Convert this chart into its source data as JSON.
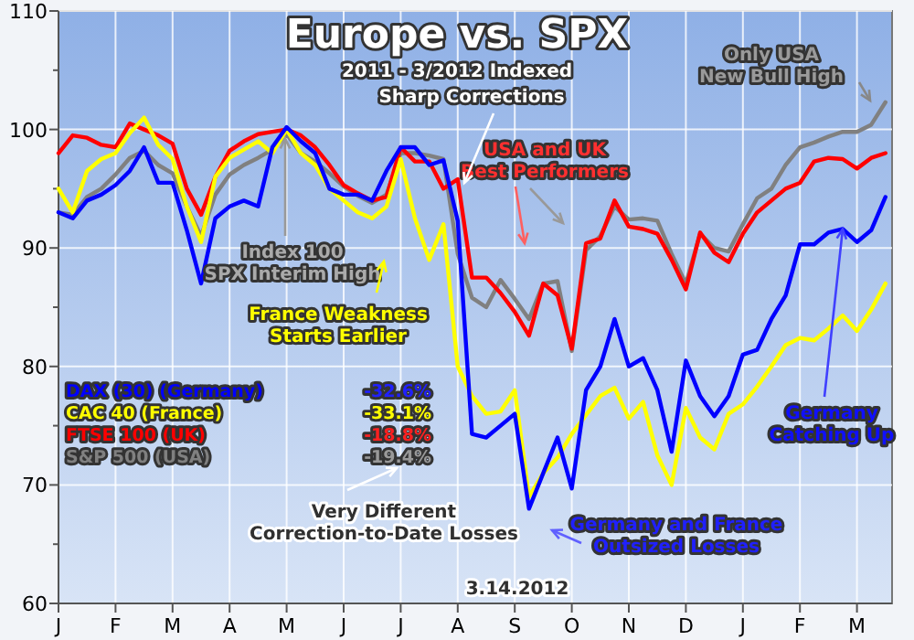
{
  "chart_data": {
    "type": "line",
    "title": "Europe vs. SPX",
    "subtitle": "2011 - 3/2012 Indexed",
    "categories": [
      "J",
      null,
      null,
      null,
      "F",
      null,
      null,
      null,
      "M",
      null,
      null,
      null,
      "A",
      null,
      null,
      null,
      "M",
      null,
      null,
      null,
      "J",
      null,
      null,
      null,
      "J",
      null,
      null,
      null,
      "A",
      null,
      null,
      null,
      "S",
      null,
      null,
      null,
      "O",
      null,
      null,
      null,
      "N",
      null,
      null,
      null,
      "D",
      null,
      null,
      null,
      "J",
      null,
      null,
      null,
      "F",
      null,
      null,
      null,
      "M",
      null,
      null
    ],
    "ylim": [
      60,
      110
    ],
    "yticks": [
      60,
      {
        "value": 65,
        "label": null
      },
      70,
      {
        "value": 75,
        "label": null
      },
      80,
      {
        "value": 85,
        "label": null
      },
      90,
      {
        "value": 95,
        "label": null
      },
      100,
      {
        "value": 105,
        "label": null
      },
      110
    ],
    "grid": true,
    "legend": "left",
    "marker": "none",
    "line_style": "solid",
    "series": [
      {
        "name": "DAX (30) (Germany)",
        "color": "#0000ff",
        "values": [
          93,
          92.5,
          94,
          94.5,
          95.3,
          96.5,
          98.5,
          95.5,
          95.5,
          91.5,
          87,
          92.5,
          93.5,
          94,
          93.5,
          98.5,
          100.2,
          99,
          98,
          95,
          94.5,
          94.5,
          94,
          96.5,
          98.5,
          98.5,
          97,
          97.4,
          92.3,
          74.3,
          74,
          75,
          76,
          68,
          71,
          74,
          69.7,
          78,
          80,
          84,
          80,
          80.7,
          78,
          72.8,
          80.5,
          77.5,
          75.8,
          77.5,
          81,
          81.4,
          84,
          86,
          90.3,
          90.3,
          91.3,
          91.6,
          90.5,
          91.5,
          94.3
        ]
      },
      {
        "name": "CAC 40 (France)",
        "color": "#ffff00",
        "values": [
          95,
          93,
          96.5,
          97.5,
          98,
          99.7,
          101,
          98.7,
          97.5,
          93.5,
          90.5,
          96,
          97.6,
          98.3,
          99,
          98,
          100,
          98,
          97,
          95,
          94,
          93,
          92.5,
          93.5,
          97.5,
          92.5,
          89,
          92,
          80,
          77.5,
          76,
          76.2,
          78,
          69,
          71,
          72.3,
          74.3,
          75.9,
          77.5,
          78.2,
          75.6,
          77,
          72.5,
          70,
          76.5,
          74,
          73,
          76,
          76.8,
          78.3,
          80,
          81.8,
          82.4,
          82.2,
          83.2,
          84.3,
          83,
          84.8,
          87
        ]
      },
      {
        "name": "FTSE 100 (UK)",
        "color": "#ff0000",
        "values": [
          98,
          99.5,
          99.3,
          98.7,
          98.5,
          100.5,
          100,
          99.5,
          98.8,
          95,
          92.8,
          96,
          98.2,
          99,
          99.6,
          99.8,
          100,
          99.5,
          98.5,
          97,
          95.3,
          94.6,
          94,
          94.3,
          98.5,
          97.3,
          97.3,
          95,
          95.8,
          87.5,
          87.5,
          86.2,
          84.6,
          82.6,
          87,
          86,
          81.5,
          90.4,
          90.8,
          94,
          91.8,
          91.6,
          91.2,
          89,
          86.5,
          91.3,
          89.6,
          88.8,
          91.2,
          93,
          94,
          95,
          95.5,
          97.3,
          97.6,
          97.5,
          96.7,
          97.6,
          98
        ]
      },
      {
        "name": "S&P 500 (USA)",
        "color": "#808080",
        "values": [
          93,
          92.8,
          94.3,
          95,
          96.2,
          97.6,
          98.2,
          97,
          96.3,
          93.5,
          91,
          94.5,
          96.2,
          97,
          97.6,
          98.3,
          99.6,
          98,
          97.3,
          96.3,
          95.2,
          94.4,
          93.8,
          94.5,
          98,
          98,
          97.8,
          97.5,
          89.5,
          85.8,
          85,
          87.3,
          85.7,
          84,
          87,
          87.2,
          81.3,
          89.8,
          91,
          93.5,
          92.4,
          92.5,
          92.3,
          89.5,
          87,
          91.2,
          90,
          89.7,
          92,
          94.2,
          95,
          97,
          98.5,
          98.9,
          99.4,
          99.8,
          99.8,
          100.4,
          102.3
        ]
      }
    ],
    "annotations": [
      "Sharp Corrections",
      {
        "text": "Index 100\nSPX Interim High",
        "y": 100
      },
      "France Weakness\nStarts Earlier",
      "USA and UK\nBest Performers",
      "Only USA\nNew Bull High",
      {
        "text": "Germany\nCatching Up",
        "y": 91.6
      },
      "Germany and France\nOutsized Losses",
      "Very Different\nCorrection-to-Date Losses",
      "-32.6%",
      "-33.1%",
      "-18.8%",
      "-19.4%",
      "3.14.2012"
    ]
  }
}
